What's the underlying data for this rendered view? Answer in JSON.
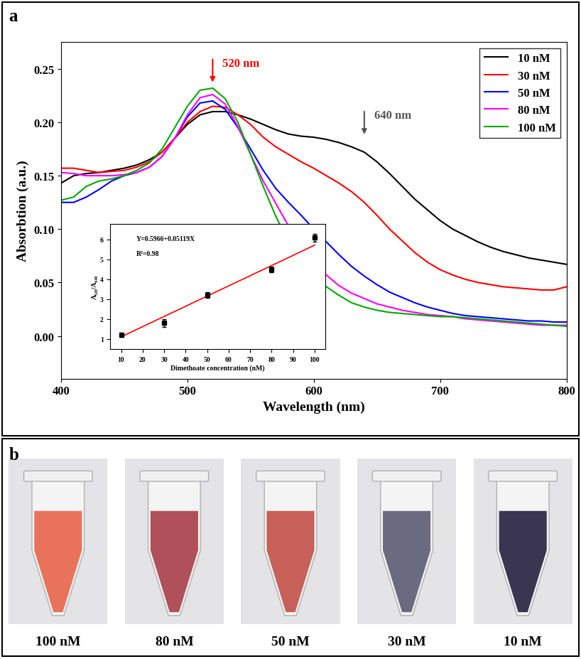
{
  "chart_data": [
    {
      "type": "line",
      "panel": "a",
      "x_label": "Wavelength (nm)",
      "y_label": "Absorbtion (a.u.)",
      "x": [
        400,
        410,
        420,
        430,
        440,
        450,
        460,
        470,
        480,
        490,
        500,
        510,
        520,
        530,
        540,
        550,
        560,
        570,
        580,
        590,
        600,
        610,
        620,
        630,
        640,
        650,
        660,
        670,
        680,
        690,
        700,
        710,
        720,
        730,
        740,
        750,
        760,
        770,
        780,
        790,
        800
      ],
      "series": [
        {
          "name": "10 nM",
          "color": "#000000",
          "values": [
            0.143,
            0.15,
            0.152,
            0.153,
            0.155,
            0.157,
            0.16,
            0.165,
            0.172,
            0.185,
            0.198,
            0.207,
            0.21,
            0.21,
            0.207,
            0.203,
            0.198,
            0.193,
            0.189,
            0.187,
            0.186,
            0.184,
            0.181,
            0.177,
            0.172,
            0.163,
            0.152,
            0.14,
            0.128,
            0.118,
            0.108,
            0.1,
            0.094,
            0.088,
            0.083,
            0.079,
            0.076,
            0.073,
            0.071,
            0.069,
            0.067
          ]
        },
        {
          "name": "30 nM",
          "color": "#ff0000",
          "values": [
            0.157,
            0.157,
            0.155,
            0.153,
            0.154,
            0.155,
            0.158,
            0.163,
            0.172,
            0.185,
            0.2,
            0.21,
            0.215,
            0.214,
            0.207,
            0.198,
            0.186,
            0.177,
            0.17,
            0.163,
            0.157,
            0.15,
            0.143,
            0.135,
            0.125,
            0.113,
            0.1,
            0.089,
            0.078,
            0.069,
            0.062,
            0.057,
            0.053,
            0.05,
            0.048,
            0.046,
            0.045,
            0.044,
            0.043,
            0.043,
            0.046
          ]
        },
        {
          "name": "50 nM",
          "color": "#0000ff",
          "values": [
            0.125,
            0.125,
            0.13,
            0.137,
            0.145,
            0.15,
            0.153,
            0.158,
            0.168,
            0.185,
            0.205,
            0.218,
            0.22,
            0.212,
            0.195,
            0.175,
            0.155,
            0.138,
            0.125,
            0.113,
            0.1,
            0.088,
            0.076,
            0.065,
            0.056,
            0.048,
            0.041,
            0.036,
            0.031,
            0.027,
            0.024,
            0.021,
            0.019,
            0.018,
            0.017,
            0.016,
            0.015,
            0.014,
            0.014,
            0.013,
            0.013
          ]
        },
        {
          "name": "80 nM",
          "color": "#ff00ff",
          "values": [
            0.153,
            0.152,
            0.15,
            0.15,
            0.15,
            0.151,
            0.153,
            0.158,
            0.168,
            0.185,
            0.207,
            0.223,
            0.226,
            0.217,
            0.196,
            0.17,
            0.145,
            0.124,
            0.103,
            0.085,
            0.069,
            0.057,
            0.047,
            0.04,
            0.035,
            0.03,
            0.027,
            0.024,
            0.022,
            0.02,
            0.019,
            0.018,
            0.016,
            0.015,
            0.014,
            0.013,
            0.012,
            0.011,
            0.01,
            0.01,
            0.01
          ]
        },
        {
          "name": "100 nM",
          "color": "#00aa00",
          "values": [
            0.127,
            0.13,
            0.14,
            0.145,
            0.147,
            0.15,
            0.155,
            0.162,
            0.175,
            0.195,
            0.215,
            0.23,
            0.232,
            0.222,
            0.2,
            0.17,
            0.14,
            0.112,
            0.088,
            0.07,
            0.056,
            0.046,
            0.038,
            0.031,
            0.027,
            0.024,
            0.022,
            0.021,
            0.02,
            0.019,
            0.018,
            0.018,
            0.017,
            0.016,
            0.015,
            0.014,
            0.013,
            0.012,
            0.011,
            0.01,
            0.009
          ]
        }
      ],
      "xlim": [
        400,
        800
      ],
      "xticks": [
        400,
        500,
        600,
        700,
        800
      ],
      "ylim": [
        -0.04,
        0.275
      ],
      "yticks": [
        {
          "value": 0,
          "label": "0.00"
        },
        0.05,
        {
          "value": 0.1,
          "label": "0.10"
        },
        0.15,
        {
          "value": 0.2,
          "label": "0.20"
        },
        0.25
      ],
      "legend": "upper right",
      "annotations": [
        {
          "text": "520 nm",
          "x": 520,
          "color": "#ff0000"
        },
        {
          "text": "640 nm",
          "x": 640,
          "color": "#555555"
        }
      ]
    },
    {
      "type": "scatter",
      "x_label": "Dimethoate concentration (nM)",
      "y_label": "A₅₂₀/A₆₄₀",
      "x": [
        10,
        30,
        50,
        80,
        100
      ],
      "values": [
        1.2,
        1.8,
        3.2,
        4.5,
        6.1
      ],
      "errors": [
        0.1,
        0.2,
        0.15,
        0.15,
        0.2
      ],
      "color": "#000000",
      "marker": "s",
      "fit": {
        "intercept": 0.5966,
        "slope": 0.05119,
        "color": "#ff0000"
      },
      "annotations": [
        {
          "text": "Y=0.5966+0.05119X"
        },
        {
          "text": "R²=0.98"
        }
      ],
      "xlim": [
        5,
        105
      ],
      "xticks": [
        10,
        20,
        30,
        40,
        50,
        60,
        70,
        80,
        90,
        100
      ],
      "ylim": [
        0.5,
        6.8
      ],
      "yticks": [
        1,
        2,
        3,
        4,
        5,
        6
      ]
    }
  ],
  "photos": {
    "panel": "b",
    "tubes": [
      {
        "label": "100 nM",
        "color": "#e8735a"
      },
      {
        "label": "80 nM",
        "color": "#b0505a"
      },
      {
        "label": "50 nM",
        "color": "#c8605a"
      },
      {
        "label": "30 nM",
        "color": "#6a6a80"
      },
      {
        "label": "10 nM",
        "color": "#3a3550"
      }
    ]
  }
}
